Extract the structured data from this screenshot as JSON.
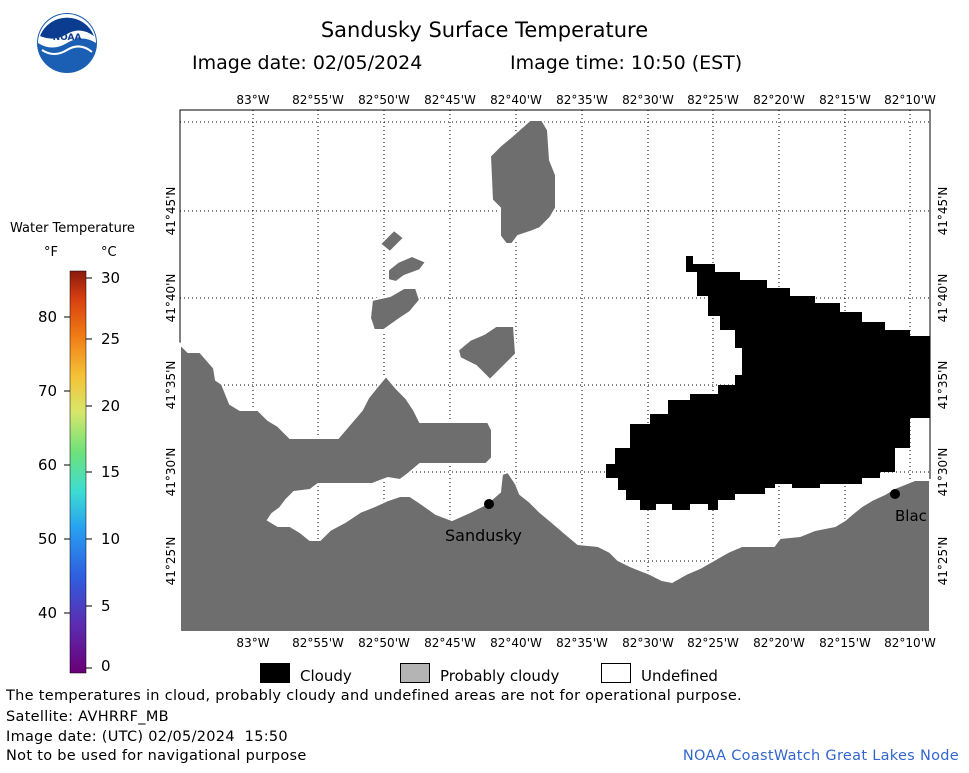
{
  "header": {
    "title": "Sandusky Surface Temperature",
    "image_date": "Image date: 02/05/2024",
    "image_time": "Image time: 10:50 (EST)",
    "logo_text": "NOAA"
  },
  "map": {
    "lon_ticks": [
      "83°W",
      "82°55'W",
      "82°50'W",
      "82°45'W",
      "82°40'W",
      "82°35'W",
      "82°30'W",
      "82°25'W",
      "82°20'W",
      "82°15'W",
      "82°10'W"
    ],
    "lat_ticks": [
      "41°45'N",
      "41°40'N",
      "41°35'N",
      "41°30'N",
      "41°25'N"
    ],
    "places": [
      {
        "name": "Sandusky"
      },
      {
        "name": "Blac"
      }
    ],
    "colors": {
      "land": "#6e6e6e",
      "cloud": "#000000",
      "undefined": "#ffffff"
    }
  },
  "color_scale": {
    "title": "Water Temperature",
    "unit_f": "°F",
    "unit_c": "°C",
    "f_labels": [
      "80",
      "70",
      "60",
      "50",
      "40"
    ],
    "c_labels": [
      "30",
      "25",
      "20",
      "15",
      "10",
      "5",
      "0"
    ]
  },
  "legend": {
    "cloudy": "Cloudy",
    "probably_cloudy": "Probably cloudy",
    "undefined": "Undefined",
    "colors": {
      "cloudy": "#000000",
      "probably_cloudy": "#b4b4b4",
      "undefined": "#ffffff"
    }
  },
  "footer": {
    "disclaimer": "The temperatures in cloud, probably cloudy and undefined areas are not for operational purpose.",
    "satellite": "Satellite: AVHRRF_MB",
    "utc_date": "Image date: (UTC) 02/05/2024  15:50",
    "nav_warning": "Not to be used for navigational purpose",
    "credit": "NOAA CoastWatch Great Lakes Node"
  }
}
